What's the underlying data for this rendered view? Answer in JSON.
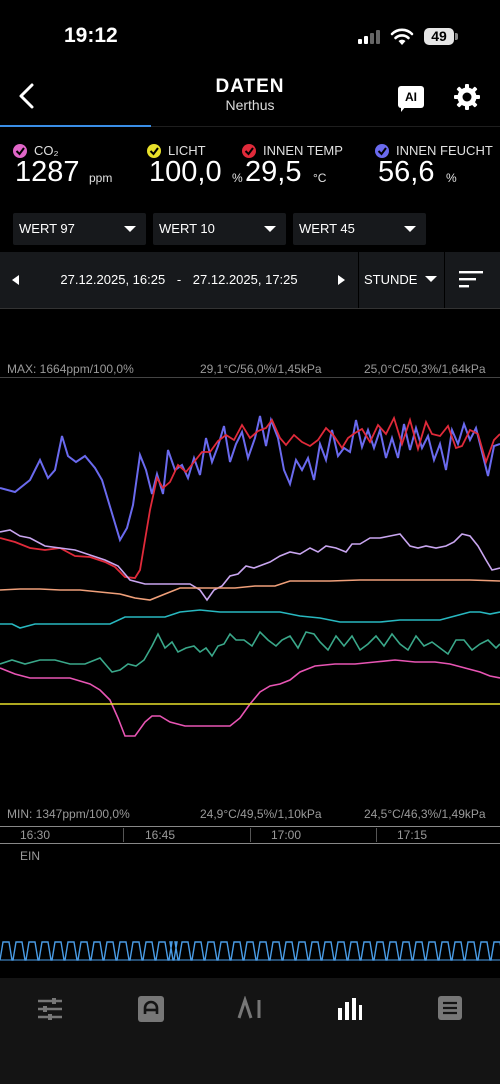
{
  "status_bar": {
    "time": "19:12",
    "battery": "49"
  },
  "header": {
    "title": "DATEN",
    "subtitle": "Nerthus",
    "ai_label": "AI"
  },
  "metrics": [
    {
      "label": "CO₂",
      "value": "1287",
      "unit": "ppm",
      "color": "#e066c8"
    },
    {
      "label": "LICHT",
      "value": "100,0",
      "unit": "%",
      "color": "#e8e02a"
    },
    {
      "label": "INNEN TEMP",
      "value": "29,5",
      "unit": "°C",
      "color": "#e02a3a"
    },
    {
      "label": "INNEN FEUCHT",
      "value": "56,6",
      "unit": "%",
      "color": "#6a6aee"
    }
  ],
  "dropdowns": [
    "WERT 97",
    "WERT 10",
    "WERT 45"
  ],
  "date_range": {
    "start": "27.12.2025, 16:25",
    "separator": "-",
    "end": "27.12.2025, 17:25"
  },
  "interval": "STUNDE",
  "chart": {
    "max_labels": [
      "MAX: 1664ppm/100,0%",
      "29,1°C/56,0%/1,45kPa",
      "25,0°C/50,3%/1,64kPa"
    ],
    "min_labels": [
      "MIN: 1347ppm/100,0%",
      "24,9°C/49,5%/1,10kPa",
      "24,5°C/46,3%/1,49kPa"
    ],
    "time_ticks": [
      "16:30",
      "16:45",
      "17:00",
      "17:15"
    ],
    "switch_label": "EIN",
    "colors": {
      "feucht": "#6a6aee",
      "temp": "#e02a3a",
      "lavender": "#c9a6f0",
      "orange": "#f0a07a",
      "cyan": "#28b8c0",
      "green": "#3aa88a",
      "pink": "#e855b4",
      "yellow": "#e8e02a",
      "switch": "#4a9ce6"
    }
  },
  "tabbar": [
    "sliders-icon",
    "grow-icon",
    "ai-icon",
    "chart-icon",
    "list-icon"
  ]
}
